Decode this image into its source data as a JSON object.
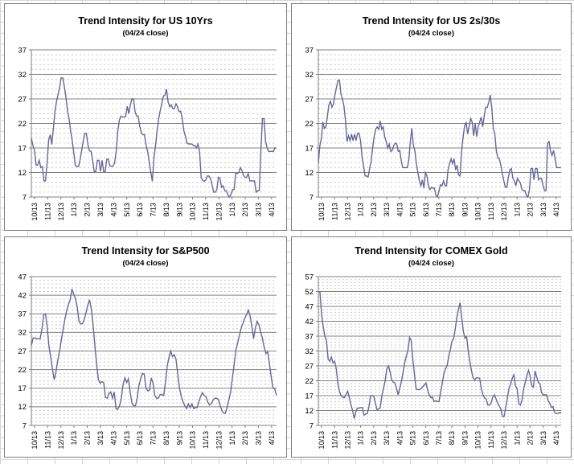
{
  "colors": {
    "line": "#666699",
    "major_grid": "#808080",
    "minor_grid": "#c9c9c9",
    "axis": "#808080",
    "text": "#000000",
    "sheet_grid": "#d4d4d4",
    "chart_border": "#7f7f7f"
  },
  "x_tick_labels": [
    "10/13",
    "11/13",
    "12/13",
    "1/13",
    "2/13",
    "3/13",
    "4/13",
    "5/13",
    "6/13",
    "7/13",
    "8/13",
    "9/13",
    "10/13",
    "11/13",
    "12/13",
    "1/13",
    "2/13",
    "3/13",
    "4/13"
  ],
  "chart_data": [
    {
      "type": "line",
      "title": "Trend Intensity for US 10Yrs",
      "subtitle": "(04/24 close)",
      "ylabel": "",
      "xlabel": "",
      "ylim": [
        7,
        37
      ],
      "yticks": [
        7,
        12,
        17,
        22,
        27,
        32,
        37
      ],
      "minor_step": 1,
      "grid": "major-solid minor-dashed",
      "legend": "none",
      "line_color": "#666699",
      "values": [
        19,
        17.5,
        16.5,
        13.5,
        13.5,
        14.5,
        13,
        13.2,
        10.3,
        10.3,
        14,
        18.6,
        19.7,
        17.7,
        21,
        24.3,
        26.5,
        27.9,
        29.4,
        31.3,
        31.3,
        29.4,
        27.4,
        24.5,
        23,
        20.4,
        18.5,
        16,
        13.4,
        13.2,
        13.2,
        14.6,
        16.5,
        18.4,
        20,
        20,
        17.6,
        16.4,
        16.3,
        14.4,
        12.2,
        12.2,
        14.5,
        14.5,
        12.2,
        14.5,
        12.2,
        12.2,
        14.7,
        14.7,
        13.3,
        13.3,
        13.3,
        14,
        16.4,
        20.4,
        22.7,
        23.5,
        23.3,
        23.3,
        23.5,
        25.5,
        24,
        25.8,
        27,
        27,
        24.4,
        23.5,
        23.5,
        21.4,
        20,
        19.7,
        19.7,
        17.5,
        16.2,
        14.2,
        12,
        10.2,
        15,
        17.5,
        20.5,
        23,
        24.6,
        26,
        27.6,
        27.7,
        29,
        26.4,
        25.4,
        25.8,
        25,
        25,
        26,
        25.4,
        24.4,
        24.5,
        23,
        20.6,
        19.4,
        18,
        17.8,
        17.8,
        17.8,
        17.5,
        17.5,
        17,
        17.8,
        16.4,
        11,
        10.4,
        10.2,
        10.5,
        11.3,
        11.3,
        10.8,
        9.4,
        8,
        8,
        8.5,
        11,
        10.8,
        9,
        9.3,
        8.3,
        8.3,
        7.5,
        7,
        7.5,
        8.5,
        8.5,
        11.8,
        11.8,
        12,
        13,
        12.4,
        11.4,
        11,
        11,
        11.8,
        10.3,
        10.3,
        10.3,
        10.3,
        8,
        8.3,
        8.3,
        16,
        23,
        23,
        18.4,
        17,
        16.3,
        16.3,
        16.3,
        16.3,
        17,
        17
      ]
    },
    {
      "type": "line",
      "title": "Trend Intensity for US 2s/30s",
      "subtitle": "(04/24 close)",
      "ylabel": "",
      "xlabel": "",
      "ylim": [
        7,
        37
      ],
      "yticks": [
        7,
        12,
        17,
        22,
        27,
        32,
        37
      ],
      "minor_step": 1,
      "grid": "major-solid minor-dashed",
      "legend": "none",
      "line_color": "#666699",
      "values": [
        14,
        17.5,
        19,
        22.3,
        21,
        21.3,
        23.5,
        25.8,
        26.5,
        25.3,
        26,
        27.8,
        29.3,
        30.8,
        30.8,
        28,
        27,
        25.5,
        22.5,
        18.3,
        19.5,
        18.5,
        19.8,
        18.5,
        19.8,
        18.5,
        20,
        20,
        18.5,
        15,
        13.3,
        11.3,
        11.3,
        11.1,
        12.8,
        14.3,
        17,
        19.3,
        20.8,
        21.3,
        20.8,
        22.5,
        20.8,
        21.3,
        19.3,
        18.3,
        17,
        17.8,
        16.3,
        16.5,
        17.5,
        18,
        17.8,
        16.3,
        16.5,
        14.3,
        13,
        13,
        13,
        13,
        14.5,
        18.3,
        21,
        17.5,
        16.5,
        13.8,
        12,
        10.3,
        9.3,
        10.5,
        8.8,
        12,
        11.3,
        9.3,
        8.5,
        9,
        8.8,
        8.8,
        7.3,
        7,
        8.3,
        9.5,
        9.3,
        10.3,
        9.3,
        9.3,
        12.5,
        13.8,
        14.8,
        13.8,
        14.8,
        12.5,
        13.5,
        11.5,
        11.3,
        16.3,
        19.3,
        21.5,
        22.3,
        19.8,
        21.5,
        23,
        22.3,
        19.5,
        22,
        19.3,
        21.3,
        22.3,
        23.3,
        21.3,
        23.5,
        25.3,
        25.3,
        26.3,
        27.8,
        25.3,
        21,
        19.8,
        16.5,
        15,
        14.8,
        13.5,
        11.8,
        10.3,
        9,
        9,
        11,
        12.5,
        12.8,
        10.8,
        10.3,
        9.3,
        10.8,
        10.3,
        9.8,
        8.5,
        8.3,
        8.3,
        7.3,
        7,
        8.5,
        12.8,
        12.8,
        10.5,
        12.8,
        12.8,
        10.5,
        10.8,
        10.8,
        9.3,
        8.3,
        8.3,
        18,
        18.3,
        16.3,
        15.5,
        16.5,
        14.8,
        13,
        13,
        13,
        13
      ]
    },
    {
      "type": "line",
      "title": "Trend Intensity for S&P500",
      "subtitle": "(04/24 close)",
      "ylabel": "",
      "xlabel": "",
      "ylim": [
        7,
        47
      ],
      "yticks": [
        7,
        12,
        17,
        22,
        27,
        32,
        37,
        42,
        47
      ],
      "minor_step": 1,
      "grid": "major-solid minor-dashed",
      "legend": "none",
      "line_color": "#666699",
      "values": [
        28.5,
        30.5,
        30.5,
        30.3,
        30.3,
        30.3,
        33,
        36.8,
        37,
        33.5,
        28.3,
        25.3,
        22,
        19.3,
        21.5,
        24.5,
        27,
        30,
        32.8,
        35.5,
        37.8,
        39.5,
        40.8,
        43.7,
        42.3,
        41,
        38.8,
        35,
        34.3,
        34.3,
        35.5,
        37.3,
        39.3,
        40.8,
        38.3,
        34,
        28.5,
        23.5,
        19.3,
        18.3,
        18.8,
        18.5,
        14.5,
        14.3,
        15.5,
        16,
        14.3,
        16,
        11.5,
        11.3,
        12.3,
        14.3,
        18,
        19.8,
        18.5,
        19.5,
        16,
        13,
        12.3,
        12.3,
        14.3,
        17.8,
        19.5,
        21,
        20.8,
        17,
        16.3,
        16.5,
        19.8,
        18.3,
        15,
        14.3,
        14.3,
        15.3,
        15.3,
        15,
        18.5,
        23,
        25.3,
        27,
        25.5,
        26,
        24.8,
        20.8,
        17,
        14.8,
        13.3,
        12.3,
        11.5,
        12.8,
        11.8,
        12.8,
        11.5,
        11.8,
        11.8,
        13.5,
        14.8,
        15.8,
        15,
        14.8,
        13.3,
        12.5,
        12.8,
        13.8,
        14.3,
        14.3,
        14,
        12.3,
        11,
        10.3,
        10.3,
        12,
        14,
        16,
        19.8,
        23.5,
        27.3,
        29.3,
        31.3,
        33.3,
        34.5,
        35.8,
        36.8,
        38,
        36.5,
        33.5,
        30.3,
        33.3,
        35,
        34,
        32,
        30.5,
        28,
        26.3,
        26.8,
        23.5,
        20,
        17,
        16.8,
        15
      ]
    },
    {
      "type": "line",
      "title": "Trend Intensity for COMEX Gold",
      "subtitle": "(04/24 close)",
      "ylabel": "",
      "xlabel": "",
      "ylim": [
        7,
        57
      ],
      "yticks": [
        7,
        12,
        17,
        22,
        27,
        32,
        37,
        42,
        47,
        52,
        57
      ],
      "minor_step": 1,
      "grid": "major-solid minor-dashed",
      "legend": "none",
      "line_color": "#666699",
      "values": [
        52,
        51.8,
        44,
        40,
        37,
        35.3,
        29.3,
        28.5,
        30,
        28,
        28.5,
        26,
        21,
        18.3,
        17,
        16.5,
        16.3,
        17.5,
        18.5,
        16.3,
        14,
        12,
        9.3,
        11.5,
        12.8,
        12.8,
        13,
        13,
        10.5,
        10.8,
        11,
        13,
        17,
        17,
        16.8,
        14.5,
        12.3,
        12.5,
        13,
        17,
        19.5,
        22,
        26,
        27,
        25,
        22.3,
        21.5,
        21.3,
        19.5,
        17.3,
        19.5,
        21.8,
        25,
        28,
        30.3,
        32.3,
        36.5,
        35.5,
        29,
        24,
        19.3,
        19,
        19,
        19.3,
        20,
        20.5,
        21.3,
        19,
        17.3,
        16.3,
        16.5,
        15,
        15.3,
        15,
        15,
        18,
        21,
        24.3,
        26,
        27,
        30,
        32.5,
        35.3,
        36,
        39.5,
        43.3,
        46,
        48.3,
        43,
        38.5,
        36.3,
        36.8,
        32,
        28.3,
        25.3,
        23,
        22.3,
        23,
        23,
        22.8,
        19.3,
        17.3,
        16.3,
        15.8,
        13.8,
        13.8,
        14.5,
        16.5,
        17.3,
        16,
        14.5,
        13.5,
        12.5,
        10,
        10,
        13,
        16.3,
        19.3,
        21,
        22.8,
        24,
        20.3,
        19.3,
        14.3,
        13.8,
        15.5,
        19.3,
        21.5,
        23.8,
        25.5,
        23.5,
        20.3,
        19.8,
        25.3,
        23.3,
        21.5,
        21,
        18,
        17.3,
        17.3,
        17.3,
        15.3,
        14.5,
        13,
        13.3,
        11.3,
        11,
        11,
        11.3,
        11.3
      ]
    }
  ]
}
